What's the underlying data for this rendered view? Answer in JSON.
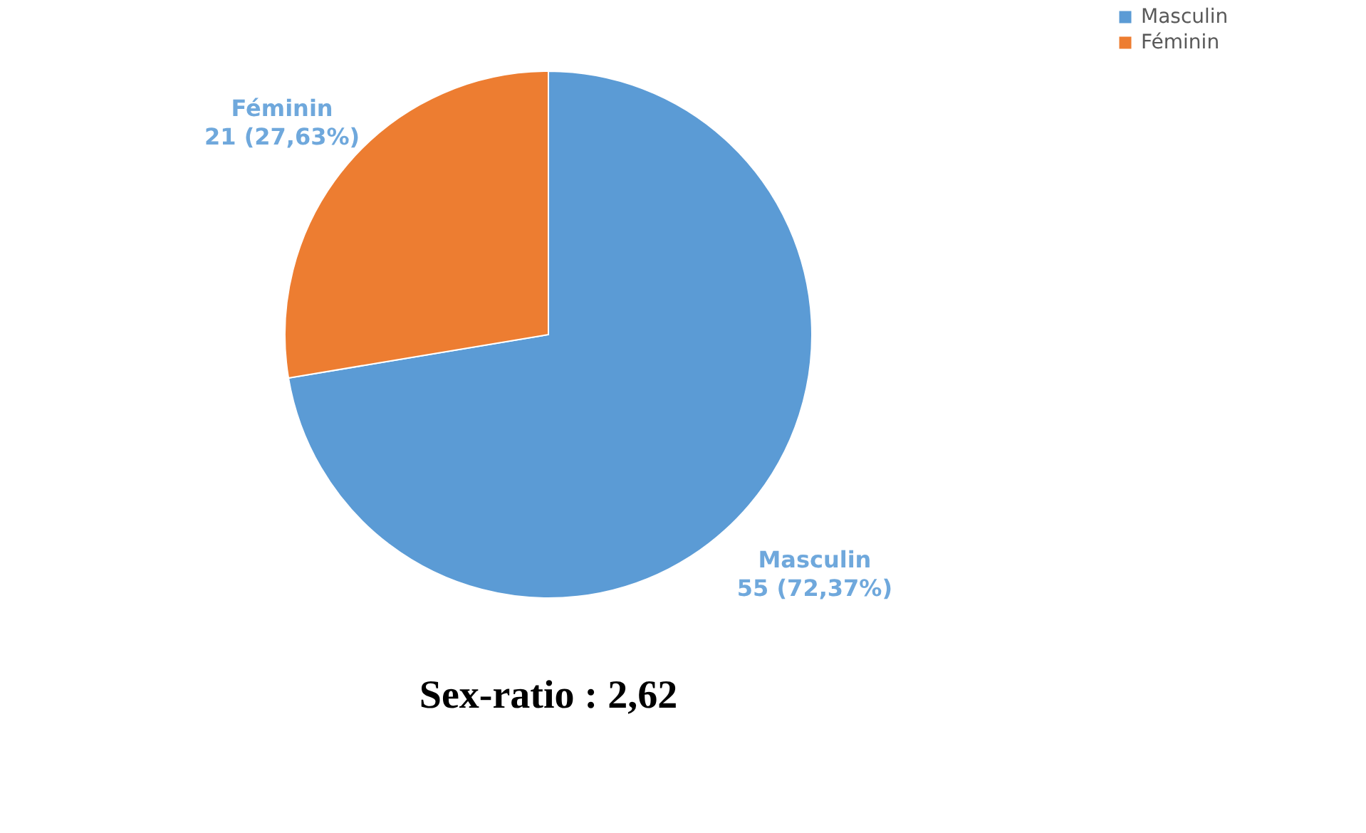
{
  "chart_data": {
    "type": "pie",
    "categories": [
      "Masculin",
      "Féminin"
    ],
    "values": [
      55,
      21
    ],
    "value_labels": [
      "55 (72,37%)",
      "21 (27,63%)"
    ],
    "colors": [
      "#5b9bd5",
      "#ed7d31"
    ],
    "legend": "right",
    "annotations": [
      "Sex-ratio : 2,62"
    ]
  }
}
